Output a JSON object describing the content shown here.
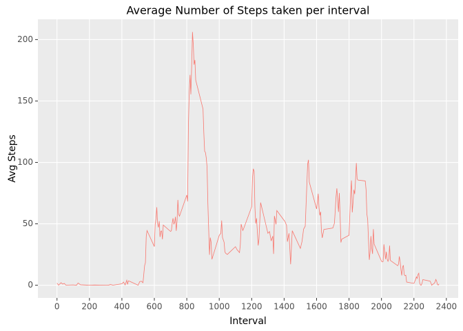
{
  "chart_data": {
    "type": "line",
    "title": "Average Number of Steps taken per interval",
    "x_label": "Interval",
    "y_label": "Avg Steps",
    "color": "#F8766D",
    "grid": true,
    "xlim": [
      -117.75,
      2472.75
    ],
    "ylim": [
      -10.3,
      216.5
    ],
    "xticks": [
      0,
      200,
      400,
      600,
      800,
      1000,
      1200,
      1400,
      1600,
      1800,
      2000,
      2200,
      2400
    ],
    "yticks": [
      0,
      50,
      100,
      150,
      200
    ],
    "x": [
      0,
      10,
      25,
      35,
      45,
      55,
      100,
      120,
      130,
      145,
      200,
      230,
      300,
      310,
      320,
      330,
      345,
      400,
      410,
      420,
      430,
      435,
      440,
      450,
      500,
      510,
      520,
      530,
      540,
      545,
      550,
      555,
      600,
      605,
      610,
      615,
      620,
      625,
      630,
      635,
      640,
      645,
      650,
      655,
      700,
      705,
      710,
      715,
      720,
      725,
      730,
      735,
      740,
      745,
      750,
      755,
      800,
      805,
      810,
      815,
      820,
      825,
      830,
      835,
      840,
      845,
      850,
      855,
      900,
      905,
      910,
      915,
      920,
      925,
      930,
      935,
      940,
      945,
      950,
      955,
      1000,
      1010,
      1015,
      1020,
      1030,
      1035,
      1040,
      1050,
      1100,
      1110,
      1125,
      1130,
      1135,
      1145,
      1150,
      1200,
      1205,
      1210,
      1215,
      1220,
      1225,
      1230,
      1240,
      1245,
      1255,
      1300,
      1310,
      1320,
      1330,
      1335,
      1340,
      1345,
      1350,
      1355,
      1405,
      1415,
      1420,
      1430,
      1440,
      1450,
      1500,
      1510,
      1520,
      1530,
      1535,
      1545,
      1550,
      1555,
      1600,
      1610,
      1615,
      1620,
      1625,
      1630,
      1635,
      1645,
      1700,
      1710,
      1715,
      1720,
      1725,
      1730,
      1735,
      1740,
      1745,
      1750,
      1755,
      1800,
      1805,
      1810,
      1815,
      1820,
      1825,
      1830,
      1835,
      1840,
      1845,
      1850,
      1855,
      1900,
      1905,
      1910,
      1915,
      1920,
      1925,
      1930,
      1935,
      1940,
      1945,
      1950,
      1955,
      2000,
      2005,
      2010,
      2015,
      2020,
      2025,
      2030,
      2035,
      2040,
      2045,
      2050,
      2055,
      2100,
      2105,
      2110,
      2115,
      2120,
      2125,
      2130,
      2135,
      2140,
      2145,
      2150,
      2155,
      2200,
      2210,
      2215,
      2220,
      2225,
      2230,
      2235,
      2240,
      2245,
      2250,
      2255,
      2300,
      2310,
      2315,
      2320,
      2325,
      2330,
      2335,
      2340,
      2345,
      2350,
      2355
    ],
    "values": [
      1.7,
      0.1,
      2.1,
      0.9,
      1.5,
      0.1,
      0.3,
      0,
      1.8,
      0.4,
      0,
      0.2,
      0,
      0,
      0.2,
      0.6,
      0.1,
      1.2,
      2.6,
      0.3,
      4.1,
      0.7,
      3.5,
      3.1,
      0,
      3.0,
      3.3,
      2.1,
      16,
      18.3,
      39.5,
      44.5,
      31.5,
      49.3,
      53.8,
      63.5,
      50,
      47.1,
      52.2,
      39.3,
      44.0,
      44.2,
      37.4,
      49.0,
      43.8,
      44.4,
      50.5,
      54.5,
      49.9,
      51.0,
      55.7,
      44.3,
      52.3,
      69.5,
      57.8,
      56.2,
      73.4,
      68.2,
      129.4,
      157.5,
      171.2,
      155.4,
      177.3,
      206.2,
      195.9,
      179.6,
      183.4,
      167.0,
      143.5,
      124.0,
      109.1,
      108.1,
      103.7,
      96.0,
      66.2,
      45.2,
      24.8,
      38.8,
      35.0,
      21.1,
      40.6,
      42.4,
      52.7,
      38.9,
      35.0,
      27.1,
      26.0,
      25.1,
      31.4,
      28.9,
      26.6,
      33.2,
      49.8,
      44.6,
      46.0,
      63.9,
      87.7,
      94.8,
      92.8,
      63.4,
      50.2,
      54.5,
      32.4,
      37.5,
      67.3,
      42.3,
      43.7,
      36.1,
      40.0,
      25.5,
      56.4,
      53.1,
      49.6,
      60.8,
      51.9,
      48.7,
      35.5,
      42.3,
      17.1,
      44.4,
      30.0,
      35.5,
      45.7,
      48.1,
      64.9,
      98.7,
      102.1,
      84.0,
      62.1,
      74.5,
      63.2,
      56.9,
      59.8,
      43.9,
      38.6,
      45.4,
      46.6,
      50.5,
      60.8,
      72.3,
      78.9,
      68.9,
      59.7,
      75.1,
      56.5,
      34.8,
      37.5,
      40.7,
      58.0,
      74.7,
      85.3,
      59.3,
      67.8,
      77.7,
      74.2,
      85.3,
      99.5,
      86.6,
      85.6,
      84.9,
      77.8,
      58.0,
      53.4,
      36.3,
      20.7,
      27.4,
      40.0,
      30.2,
      25.5,
      45.7,
      33.5,
      19.6,
      19.0,
      19.3,
      33.3,
      26.8,
      21.2,
      27.3,
      21.3,
      19.5,
      21.3,
      32.3,
      20.2,
      15.9,
      17.2,
      23.5,
      19.2,
      12.5,
      8.0,
      14.7,
      16.3,
      8.7,
      7.8,
      8.1,
      2.6,
      1.5,
      4.6,
      6.8,
      5.6,
      8.7,
      9.8,
      2.2,
      0.3,
      0.1,
      1.6,
      4.6,
      3.3,
      0,
      0.8,
      1.0,
      1.6,
      2.6,
      4.7,
      3.3,
      0.6,
      0.2,
      1.1
    ]
  }
}
